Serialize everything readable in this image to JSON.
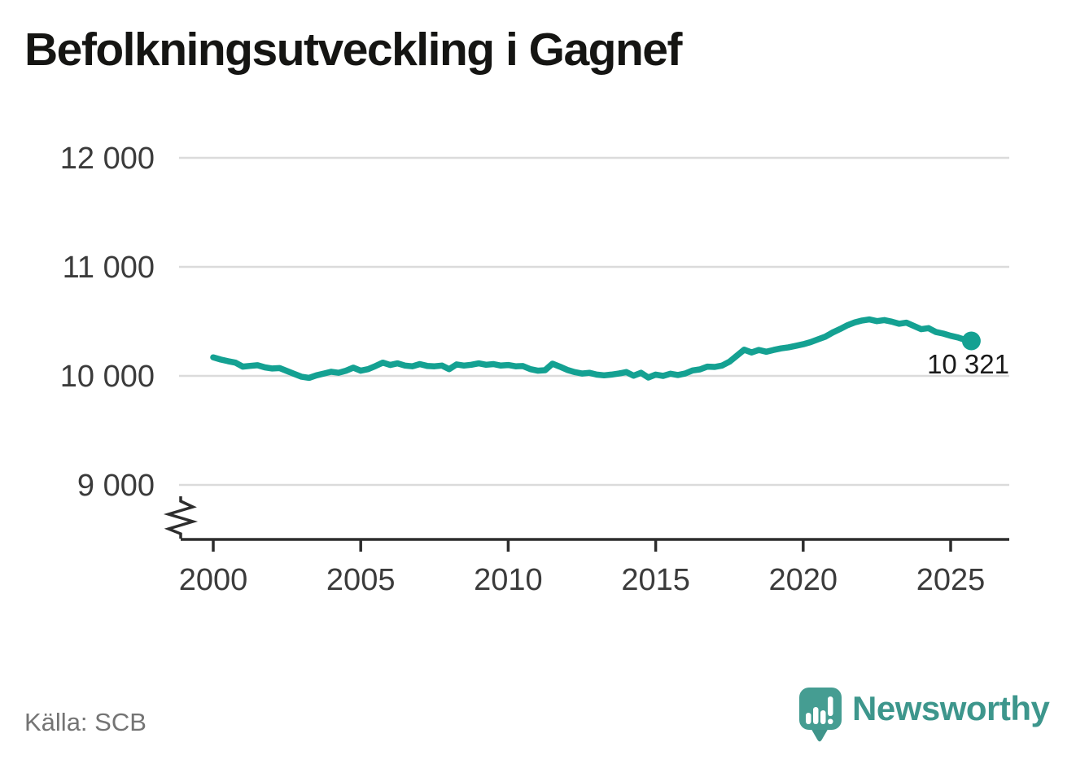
{
  "header": {
    "title": "Befolkningsutveckling i Gagnef"
  },
  "footer": {
    "source_label": "Källa: SCB",
    "brand": {
      "name": "Newsworthy",
      "icon": "newsworthy-speech-bubble-chart-icon"
    }
  },
  "colors": {
    "series_teal": "#14a192",
    "logo_teal": "#3d968c",
    "grid": "#dbdbdb",
    "axis": "#2d2d2d",
    "tick_text": "#3b3b3b"
  },
  "chart_data": {
    "type": "line",
    "title": "Befolkningsutveckling i Gagnef",
    "xlabel": "",
    "ylabel": "",
    "grid": "horizontal",
    "legend": "none",
    "axis_break_bottom": true,
    "ylim": [
      9000,
      12000
    ],
    "xlim": [
      2000,
      2026
    ],
    "y_ticks": [
      {
        "value": 9000,
        "label": "9 000"
      },
      {
        "value": 10000,
        "label": "10 000"
      },
      {
        "value": 11000,
        "label": "11 000"
      },
      {
        "value": 12000,
        "label": "12 000"
      }
    ],
    "x_ticks": [
      {
        "value": 2000,
        "label": "2000"
      },
      {
        "value": 2005,
        "label": "2005"
      },
      {
        "value": 2010,
        "label": "2010"
      },
      {
        "value": 2015,
        "label": "2015"
      },
      {
        "value": 2020,
        "label": "2020"
      },
      {
        "value": 2025,
        "label": "2025"
      }
    ],
    "end_label": "10 321",
    "end_value": 10321,
    "series": [
      {
        "name": "Befolkning i Gagnef",
        "color": "#14a192",
        "x": [
          2000.0,
          2000.25,
          2000.5,
          2000.75,
          2001.0,
          2001.25,
          2001.5,
          2001.75,
          2002.0,
          2002.25,
          2002.5,
          2002.75,
          2003.0,
          2003.25,
          2003.5,
          2003.75,
          2004.0,
          2004.25,
          2004.5,
          2004.75,
          2005.0,
          2005.25,
          2005.5,
          2005.75,
          2006.0,
          2006.25,
          2006.5,
          2006.75,
          2007.0,
          2007.25,
          2007.5,
          2007.75,
          2008.0,
          2008.25,
          2008.5,
          2008.75,
          2009.0,
          2009.25,
          2009.5,
          2009.75,
          2010.0,
          2010.25,
          2010.5,
          2010.75,
          2011.0,
          2011.25,
          2011.5,
          2011.75,
          2012.0,
          2012.25,
          2012.5,
          2012.75,
          2013.0,
          2013.25,
          2013.5,
          2013.75,
          2014.0,
          2014.25,
          2014.5,
          2014.75,
          2015.0,
          2015.25,
          2015.5,
          2015.75,
          2016.0,
          2016.25,
          2016.5,
          2016.75,
          2017.0,
          2017.25,
          2017.5,
          2017.75,
          2018.0,
          2018.25,
          2018.5,
          2018.75,
          2019.0,
          2019.25,
          2019.5,
          2019.75,
          2020.0,
          2020.25,
          2020.5,
          2020.75,
          2021.0,
          2021.25,
          2021.5,
          2021.75,
          2022.0,
          2022.25,
          2022.5,
          2022.75,
          2023.0,
          2023.25,
          2023.5,
          2023.75,
          2024.0,
          2024.25,
          2024.5,
          2024.75,
          2025.0,
          2025.25,
          2025.5,
          2025.7
        ],
        "y": [
          10170,
          10150,
          10135,
          10122,
          10085,
          10092,
          10098,
          10078,
          10068,
          10072,
          10045,
          10018,
          9992,
          9982,
          10005,
          10022,
          10038,
          10028,
          10048,
          10075,
          10048,
          10062,
          10090,
          10122,
          10100,
          10115,
          10095,
          10088,
          10108,
          10092,
          10088,
          10095,
          10062,
          10105,
          10095,
          10102,
          10115,
          10102,
          10108,
          10095,
          10100,
          10088,
          10090,
          10062,
          10048,
          10052,
          10112,
          10085,
          10055,
          10035,
          10022,
          10028,
          10012,
          10005,
          10012,
          10022,
          10035,
          10002,
          10028,
          9985,
          10012,
          10000,
          10020,
          10008,
          10022,
          10050,
          10060,
          10085,
          10082,
          10095,
          10130,
          10185,
          10240,
          10215,
          10238,
          10222,
          10238,
          10252,
          10262,
          10275,
          10290,
          10310,
          10335,
          10360,
          10398,
          10430,
          10465,
          10490,
          10508,
          10518,
          10502,
          10512,
          10498,
          10478,
          10488,
          10458,
          10428,
          10438,
          10402,
          10388,
          10368,
          10352,
          10330,
          10321
        ]
      }
    ]
  }
}
